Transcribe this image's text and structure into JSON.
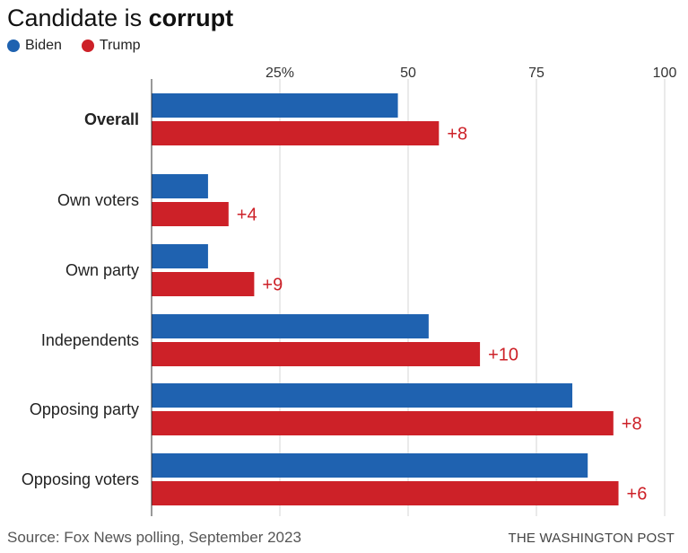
{
  "title": {
    "regular": "Candidate is",
    "bold": "corrupt"
  },
  "legend": [
    {
      "label": "Biden",
      "color": "#1f62b0"
    },
    {
      "label": "Trump",
      "color": "#cd2128"
    }
  ],
  "chart_data": {
    "type": "bar",
    "orientation": "horizontal",
    "categories": [
      "Overall",
      "Own voters",
      "Own party",
      "Independents",
      "Opposing party",
      "Opposing voters"
    ],
    "series": [
      {
        "name": "Biden",
        "color": "#1f62b0",
        "values": [
          48,
          11,
          11,
          54,
          82,
          85
        ]
      },
      {
        "name": "Trump",
        "color": "#cd2128",
        "values": [
          56,
          15,
          20,
          64,
          90,
          91
        ]
      }
    ],
    "data_labels": [
      "+8",
      "+4",
      "+9",
      "+10",
      "+8",
      "+6"
    ],
    "x_ticks": [
      {
        "value": 25,
        "label": "25%"
      },
      {
        "value": 50,
        "label": "50"
      },
      {
        "value": 75,
        "label": "75"
      },
      {
        "value": 100,
        "label": "100"
      }
    ],
    "xlim": [
      0,
      100
    ],
    "grid": true,
    "legend_position": "top-left"
  },
  "footer": {
    "source": "Source: Fox News polling, September 2023",
    "credit": "THE WASHINGTON POST"
  }
}
